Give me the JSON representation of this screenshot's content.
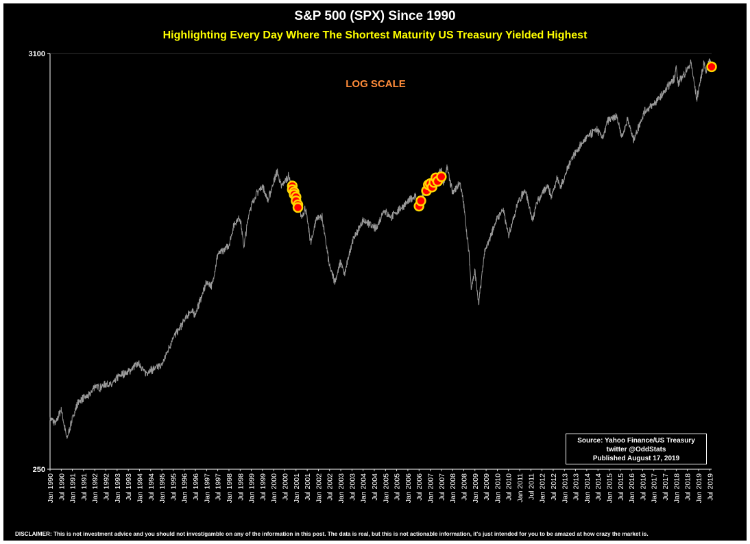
{
  "chart_data": {
    "type": "line",
    "title": "S&P 500 (SPX) Since 1990",
    "subtitle": "Highlighting Every Day Where The Shortest Maturity US Treasury Yielded Highest",
    "annotation": "LOG SCALE",
    "y_scale": "log",
    "ylim": [
      250,
      3100
    ],
    "ytick_labels": [
      "3100",
      "250"
    ],
    "xlim": [
      "1990-01",
      "2019-08"
    ],
    "x_tick_labels": [
      "Jan 1990",
      "Jul 1990",
      "Jan 1991",
      "Jul 1991",
      "Jan 1992",
      "Jul 1992",
      "Jan 1993",
      "Jul 1993",
      "Jan 1994",
      "Jul 1994",
      "Jan 1995",
      "Jul 1995",
      "Jan 1996",
      "Jul 1996",
      "Jan 1997",
      "Jul 1997",
      "Jan 1998",
      "Jul 1998",
      "Jan 1999",
      "Jul 1999",
      "Jan 2000",
      "Jul 2000",
      "Jan 2001",
      "Jul 2001",
      "Jan 2002",
      "Jul 2002",
      "Jan 2003",
      "Jul 2003",
      "Jan 2004",
      "Jul 2004",
      "Jan 2005",
      "Jul 2005",
      "Jan 2006",
      "Jul 2006",
      "Jan 2007",
      "Jul 2007",
      "Jan 2008",
      "Jul 2008",
      "Jan 2009",
      "Jul 2009",
      "Jan 2010",
      "Jul 2010",
      "Jan 2011",
      "Jul 2011",
      "Jan 2012",
      "Jul 2012",
      "Jan 2013",
      "Jul 2013",
      "Jan 2014",
      "Jul 2014",
      "Jan 2015",
      "Jul 2015",
      "Jan 2016",
      "Jul 2016",
      "Jan 2017",
      "Jul 2017",
      "Jan 2018",
      "Jul 2018",
      "Jan 2019",
      "Jul 2019"
    ],
    "grid": false,
    "series": [
      {
        "type": "line",
        "color": "#9a9a9a",
        "points": [
          [
            "1990-01",
            340
          ],
          [
            "1990-04",
            330
          ],
          [
            "1990-07",
            360
          ],
          [
            "1990-10",
            300
          ],
          [
            "1991-01",
            340
          ],
          [
            "1991-04",
            375
          ],
          [
            "1991-07",
            385
          ],
          [
            "1991-10",
            390
          ],
          [
            "1992-01",
            415
          ],
          [
            "1992-04",
            410
          ],
          [
            "1992-07",
            420
          ],
          [
            "1992-10",
            415
          ],
          [
            "1993-01",
            435
          ],
          [
            "1993-04",
            445
          ],
          [
            "1993-07",
            450
          ],
          [
            "1993-10",
            465
          ],
          [
            "1994-01",
            475
          ],
          [
            "1994-04",
            448
          ],
          [
            "1994-07",
            455
          ],
          [
            "1994-10",
            462
          ],
          [
            "1995-01",
            470
          ],
          [
            "1995-04",
            510
          ],
          [
            "1995-07",
            555
          ],
          [
            "1995-10",
            580
          ],
          [
            "1996-01",
            615
          ],
          [
            "1996-04",
            650
          ],
          [
            "1996-07",
            640
          ],
          [
            "1996-10",
            705
          ],
          [
            "1997-01",
            775
          ],
          [
            "1997-04",
            760
          ],
          [
            "1997-07",
            920
          ],
          [
            "1997-10",
            940
          ],
          [
            "1998-01",
            975
          ],
          [
            "1998-04",
            1110
          ],
          [
            "1998-07",
            1150
          ],
          [
            "1998-09",
            960
          ],
          [
            "1998-12",
            1200
          ],
          [
            "1999-04",
            1330
          ],
          [
            "1999-07",
            1390
          ],
          [
            "1999-10",
            1270
          ],
          [
            "2000-01",
            1430
          ],
          [
            "2000-03",
            1520
          ],
          [
            "2000-05",
            1380
          ],
          [
            "2000-09",
            1480
          ],
          [
            "2000-12",
            1330
          ],
          [
            "2001-02",
            1240
          ],
          [
            "2001-04",
            1150
          ],
          [
            "2001-06",
            1220
          ],
          [
            "2001-09",
            980
          ],
          [
            "2001-12",
            1150
          ],
          [
            "2002-03",
            1150
          ],
          [
            "2002-07",
            850
          ],
          [
            "2002-10",
            780
          ],
          [
            "2003-01",
            880
          ],
          [
            "2003-03",
            810
          ],
          [
            "2003-07",
            990
          ],
          [
            "2004-01",
            1130
          ],
          [
            "2004-08",
            1070
          ],
          [
            "2004-12",
            1200
          ],
          [
            "2005-04",
            1150
          ],
          [
            "2005-12",
            1250
          ],
          [
            "2006-05",
            1310
          ],
          [
            "2006-07",
            1240
          ],
          [
            "2006-12",
            1420
          ],
          [
            "2007-03",
            1400
          ],
          [
            "2007-07",
            1540
          ],
          [
            "2007-08",
            1410
          ],
          [
            "2007-10",
            1560
          ],
          [
            "2008-01",
            1330
          ],
          [
            "2008-05",
            1420
          ],
          [
            "2008-07",
            1240
          ],
          [
            "2008-10",
            900
          ],
          [
            "2008-11",
            750
          ],
          [
            "2009-01",
            830
          ],
          [
            "2009-03",
            677
          ],
          [
            "2009-06",
            920
          ],
          [
            "2009-12",
            1115
          ],
          [
            "2010-04",
            1210
          ],
          [
            "2010-07",
            1030
          ],
          [
            "2010-12",
            1258
          ],
          [
            "2011-04",
            1360
          ],
          [
            "2011-08",
            1120
          ],
          [
            "2011-10",
            1250
          ],
          [
            "2012-04",
            1400
          ],
          [
            "2012-06",
            1300
          ],
          [
            "2012-09",
            1460
          ],
          [
            "2012-11",
            1380
          ],
          [
            "2013-05",
            1650
          ],
          [
            "2013-12",
            1840
          ],
          [
            "2014-06",
            1960
          ],
          [
            "2014-10",
            1860
          ],
          [
            "2014-12",
            2060
          ],
          [
            "2015-05",
            2120
          ],
          [
            "2015-08",
            1870
          ],
          [
            "2015-11",
            2090
          ],
          [
            "2016-02",
            1830
          ],
          [
            "2016-08",
            2180
          ],
          [
            "2016-12",
            2260
          ],
          [
            "2017-06",
            2430
          ],
          [
            "2017-12",
            2680
          ],
          [
            "2018-01",
            2870
          ],
          [
            "2018-02",
            2580
          ],
          [
            "2018-09",
            2930
          ],
          [
            "2018-12",
            2350
          ],
          [
            "2019-04",
            2950
          ],
          [
            "2019-05",
            2750
          ],
          [
            "2019-07",
            3020
          ],
          [
            "2019-08",
            2850
          ]
        ]
      },
      {
        "type": "scatter",
        "name": "Shortest maturity US Treasury yielded highest",
        "fill": "#ff0000",
        "stroke": "#ffd700",
        "points": [
          [
            "2000-11",
            1390
          ],
          [
            "2000-11",
            1360
          ],
          [
            "2000-12",
            1340
          ],
          [
            "2000-12",
            1320
          ],
          [
            "2001-01",
            1300
          ],
          [
            "2001-01",
            1270
          ],
          [
            "2001-02",
            1240
          ],
          [
            "2001-02",
            1220
          ],
          [
            "2006-07",
            1230
          ],
          [
            "2006-08",
            1270
          ],
          [
            "2006-11",
            1350
          ],
          [
            "2006-12",
            1400
          ],
          [
            "2007-01",
            1410
          ],
          [
            "2007-02",
            1380
          ],
          [
            "2007-03",
            1420
          ],
          [
            "2007-04",
            1460
          ],
          [
            "2007-05",
            1430
          ],
          [
            "2007-07",
            1470
          ],
          [
            "2019-08",
            2860
          ]
        ]
      }
    ]
  },
  "source_box": {
    "line1": "Source: Yahoo Finance/US Treasury",
    "line2": "twitter @OddStats",
    "line3": "Published August 17, 2019"
  },
  "disclaimer": "DISCLAIMER: This is not investment advice and you should not invest/gamble on any of the information in this post.   The data is real, but this is not actionable information, it's just intended for you to be amazed at how crazy the market is."
}
